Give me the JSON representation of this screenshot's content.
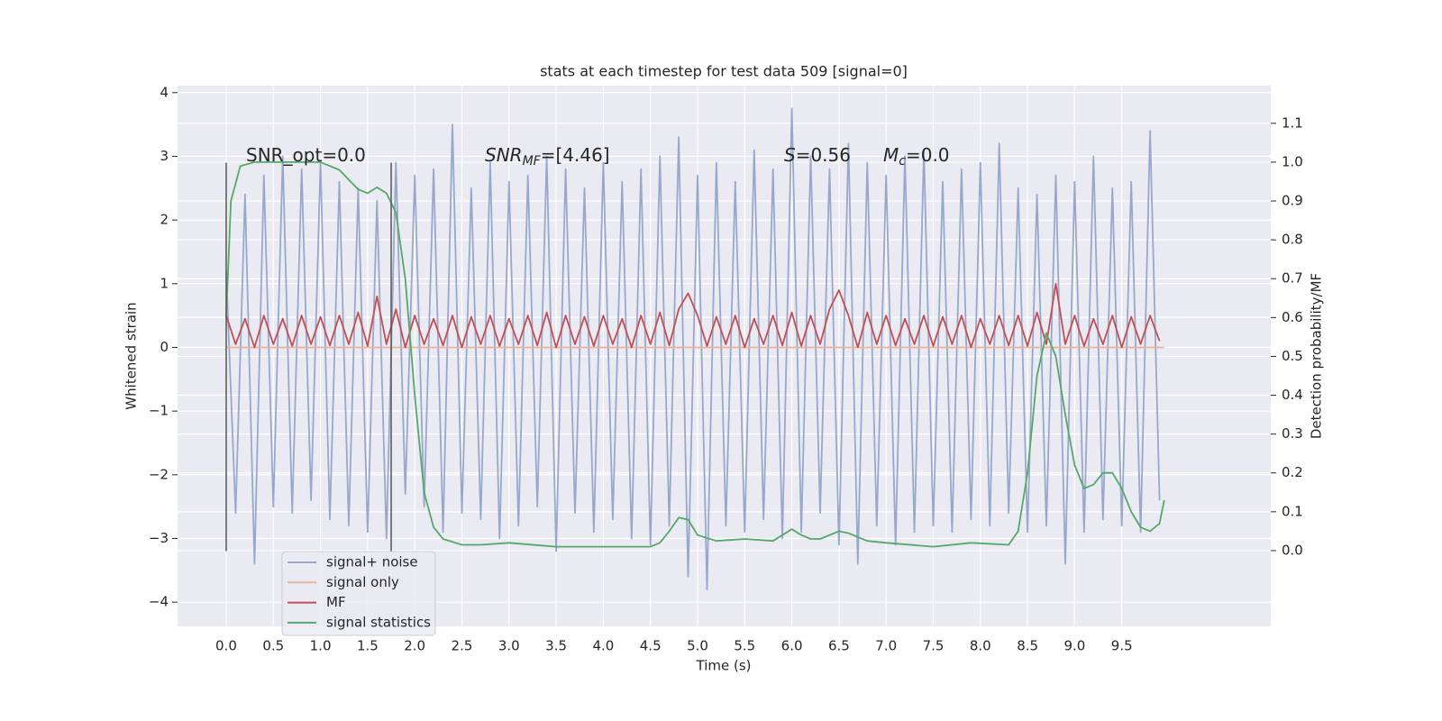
{
  "chart_data": {
    "type": "line",
    "title": "stats at each timestep for test data 509 [signal=0]",
    "x_label": "Time (s)",
    "y_label": "Whitened strain",
    "y2_label": "Detection probability/MF",
    "grid": true,
    "legend": "lower left",
    "xlim": [
      -0.516,
      11.08
    ],
    "ylim": [
      -4.38,
      4.11
    ],
    "y2lim": [
      -0.195,
      1.197
    ],
    "xticks": [
      {
        "value": 0,
        "label": "0.0"
      },
      {
        "value": 0.5,
        "label": "0.5"
      },
      {
        "value": 1,
        "label": "1.0"
      },
      {
        "value": 1.5,
        "label": "1.5"
      },
      {
        "value": 2,
        "label": "2.0"
      },
      {
        "value": 2.5,
        "label": "2.5"
      },
      {
        "value": 3,
        "label": "3.0"
      },
      {
        "value": 3.5,
        "label": "3.5"
      },
      {
        "value": 4,
        "label": "4.0"
      },
      {
        "value": 4.5,
        "label": "4.5"
      },
      {
        "value": 5,
        "label": "5.0"
      },
      {
        "value": 5.5,
        "label": "5.5"
      },
      {
        "value": 6,
        "label": "6.0"
      },
      {
        "value": 6.5,
        "label": "6.5"
      },
      {
        "value": 7,
        "label": "7.0"
      },
      {
        "value": 7.5,
        "label": "7.5"
      },
      {
        "value": 8,
        "label": "8.0"
      },
      {
        "value": 8.5,
        "label": "8.5"
      },
      {
        "value": 9,
        "label": "9.0"
      },
      {
        "value": 9.5,
        "label": "9.5"
      }
    ],
    "yticks": [
      {
        "value": -4,
        "label": "−4"
      },
      {
        "value": -3,
        "label": "−3"
      },
      {
        "value": -2,
        "label": "−2"
      },
      {
        "value": -1,
        "label": "−1"
      },
      0,
      1,
      2,
      3,
      4
    ],
    "y2ticks": [
      {
        "value": 0,
        "label": "0.0"
      },
      {
        "value": 0.1,
        "label": "0.1"
      },
      {
        "value": 0.2,
        "label": "0.2"
      },
      {
        "value": 0.3,
        "label": "0.3"
      },
      {
        "value": 0.4,
        "label": "0.4"
      },
      {
        "value": 0.5,
        "label": "0.5"
      },
      {
        "value": 0.6,
        "label": "0.6"
      },
      {
        "value": 0.7,
        "label": "0.7"
      },
      {
        "value": 0.8,
        "label": "0.8"
      },
      {
        "value": 0.9,
        "label": "0.9"
      },
      {
        "value": 1,
        "label": "1.0"
      },
      {
        "value": 1.1,
        "label": "1.1"
      }
    ],
    "x": [
      0,
      0.1,
      0.2,
      0.3,
      0.4,
      0.5,
      0.6,
      0.7,
      0.8,
      0.9,
      1,
      1.1,
      1.2,
      1.3,
      1.4,
      1.5,
      1.6,
      1.7,
      1.8,
      1.9,
      2,
      2.1,
      2.2,
      2.3,
      2.4,
      2.5,
      2.6,
      2.7,
      2.8,
      2.9,
      3,
      3.1,
      3.2,
      3.3,
      3.4,
      3.5,
      3.6,
      3.7,
      3.8,
      3.9,
      4,
      4.1,
      4.2,
      4.3,
      4.4,
      4.5,
      4.6,
      4.7,
      4.8,
      4.9,
      5,
      5.1,
      5.2,
      5.3,
      5.4,
      5.5,
      5.6,
      5.7,
      5.8,
      5.9,
      6,
      6.1,
      6.2,
      6.3,
      6.4,
      6.5,
      6.6,
      6.7,
      6.8,
      6.9,
      7,
      7.1,
      7.2,
      7.3,
      7.4,
      7.5,
      7.6,
      7.7,
      7.8,
      7.9,
      8,
      8.1,
      8.2,
      8.3,
      8.4,
      8.5,
      8.6,
      8.7,
      8.8,
      8.9,
      9,
      9.1,
      9.2,
      9.3,
      9.4,
      9.5,
      9.6,
      9.7,
      9.8,
      9.9
    ],
    "series": [
      {
        "name": "signal+ noise",
        "color": "#98a8cd",
        "values": [
          1.2,
          -2.6,
          2.4,
          -3.4,
          2.7,
          -2.5,
          3.0,
          -2.6,
          2.8,
          -2.4,
          2.9,
          -2.7,
          2.6,
          -2.8,
          2.5,
          -2.9,
          2.3,
          -3.0,
          2.9,
          -2.3,
          2.7,
          -2.5,
          2.8,
          -2.9,
          3.5,
          -2.6,
          2.5,
          -2.7,
          2.9,
          -3.0,
          2.6,
          -2.8,
          2.7,
          -2.5,
          3.0,
          -3.2,
          2.8,
          -2.6,
          2.5,
          -2.9,
          2.9,
          -2.7,
          2.6,
          -3.0,
          2.8,
          -3.1,
          3.0,
          -2.8,
          3.3,
          -3.6,
          2.7,
          -3.8,
          2.9,
          -2.8,
          2.6,
          -2.9,
          3.1,
          -2.7,
          2.8,
          -3.0,
          3.75,
          -2.9,
          3.0,
          -2.6,
          2.8,
          -3.1,
          3.2,
          -3.4,
          2.9,
          -2.8,
          2.7,
          -3.1,
          3.0,
          -2.9,
          3.1,
          -2.8,
          2.6,
          -2.9,
          2.8,
          -2.7,
          2.9,
          -2.8,
          3.2,
          -2.6,
          2.5,
          -2.9,
          2.4,
          -2.8,
          2.7,
          -3.4,
          2.6,
          -2.9,
          3.0,
          -2.7,
          2.5,
          -2.8,
          2.6,
          -2.9,
          3.4,
          -2.4
        ]
      },
      {
        "name": "signal only",
        "color": "#e8b49a",
        "x": [
          0,
          9.95
        ],
        "values": [
          0,
          0
        ]
      },
      {
        "name": "MF",
        "color": "#c44e52",
        "values": [
          0.5,
          0.05,
          0.45,
          0.0,
          0.5,
          0.05,
          0.45,
          0.02,
          0.5,
          0.05,
          0.48,
          0.03,
          0.5,
          0.05,
          0.55,
          0.02,
          0.8,
          0.05,
          0.6,
          0.0,
          0.5,
          0.05,
          0.45,
          0.03,
          0.5,
          0.0,
          0.48,
          0.05,
          0.5,
          0.02,
          0.45,
          0.05,
          0.5,
          0.03,
          0.55,
          0.0,
          0.5,
          0.05,
          0.48,
          0.02,
          0.5,
          0.05,
          0.45,
          0.0,
          0.5,
          0.05,
          0.55,
          0.03,
          0.6,
          0.85,
          0.5,
          0.02,
          0.48,
          0.05,
          0.5,
          0.0,
          0.45,
          0.05,
          0.5,
          0.03,
          0.55,
          0.02,
          0.5,
          0.05,
          0.6,
          0.9,
          0.5,
          0.0,
          0.55,
          0.05,
          0.5,
          0.03,
          0.45,
          0.05,
          0.5,
          0.02,
          0.48,
          0.05,
          0.5,
          0.0,
          0.45,
          0.05,
          0.5,
          0.03,
          0.5,
          0.02,
          0.55,
          0.05,
          1.0,
          0.05,
          0.5,
          0.02,
          0.45,
          0.05,
          0.5,
          0.0,
          0.48,
          0.05,
          0.5,
          0.1
        ]
      },
      {
        "name": "signal statistics",
        "color": "#55a868",
        "axis": "y2",
        "x": [
          0,
          0.05,
          0.15,
          0.3,
          1.0,
          1.2,
          1.4,
          1.5,
          1.6,
          1.7,
          1.8,
          1.9,
          2.0,
          2.1,
          2.2,
          2.3,
          2.5,
          2.7,
          3.0,
          3.5,
          4.0,
          4.5,
          4.6,
          4.7,
          4.8,
          4.9,
          5.0,
          5.2,
          5.5,
          5.8,
          5.9,
          6.0,
          6.1,
          6.2,
          6.3,
          6.5,
          6.6,
          6.8,
          7.0,
          7.5,
          7.9,
          8.3,
          8.4,
          8.5,
          8.6,
          8.7,
          8.8,
          8.9,
          9.0,
          9.1,
          9.2,
          9.3,
          9.4,
          9.5,
          9.6,
          9.7,
          9.8,
          9.9,
          9.95
        ],
        "values": [
          0.6,
          0.9,
          0.99,
          1.0,
          1.0,
          0.98,
          0.93,
          0.92,
          0.935,
          0.92,
          0.87,
          0.7,
          0.4,
          0.15,
          0.06,
          0.03,
          0.015,
          0.015,
          0.02,
          0.01,
          0.01,
          0.01,
          0.02,
          0.05,
          0.085,
          0.08,
          0.04,
          0.025,
          0.03,
          0.025,
          0.04,
          0.055,
          0.04,
          0.03,
          0.03,
          0.05,
          0.045,
          0.025,
          0.02,
          0.01,
          0.02,
          0.015,
          0.05,
          0.2,
          0.45,
          0.56,
          0.5,
          0.35,
          0.22,
          0.16,
          0.17,
          0.2,
          0.2,
          0.16,
          0.1,
          0.06,
          0.05,
          0.07,
          0.13
        ]
      }
    ],
    "vlines": {
      "x": [
        0,
        1.75
      ],
      "ymin": -3.2,
      "ymax": 2.9,
      "color": "#555555"
    },
    "annotations": [
      {
        "main": "SNR_opt=0.0",
        "italic": false
      },
      {
        "main": "SNR",
        "sub": "MF",
        "rest": "=[4.46]",
        "italic": true
      },
      {
        "main": "S",
        "rest": "=0.56",
        "italic": true
      },
      {
        "main": "M",
        "sub": "c",
        "rest": "=0.0",
        "italic": true
      }
    ]
  }
}
